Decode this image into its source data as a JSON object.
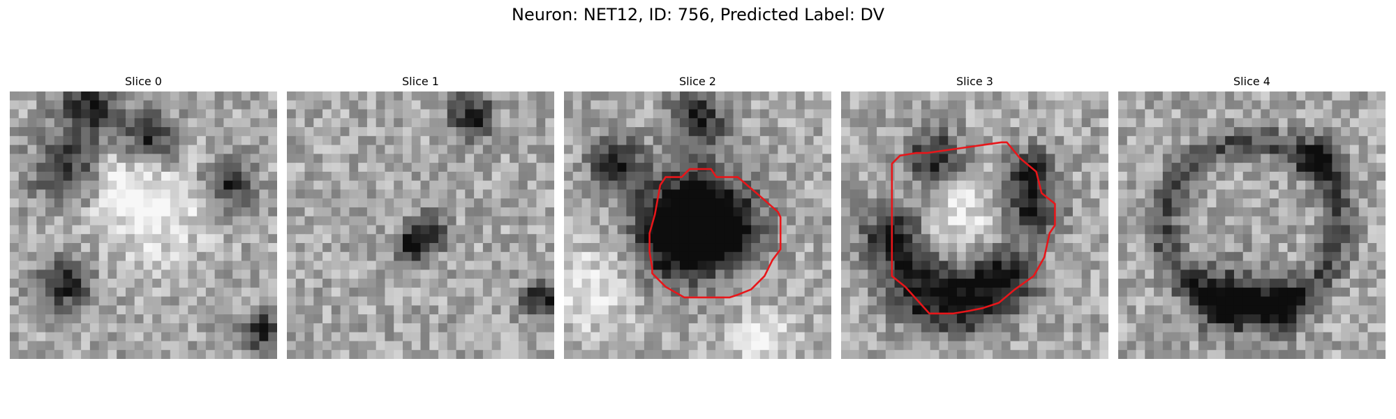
{
  "figure": {
    "title": "Neuron: NET12, ID: 756, Predicted Label: DV"
  },
  "slices": [
    {
      "label": "Slice 0",
      "has_contour": false,
      "noise_seed": 11,
      "dark_blobs": [
        [
          0.3,
          0.07,
          0.08
        ],
        [
          0.52,
          0.18,
          0.07
        ],
        [
          0.82,
          0.34,
          0.06
        ],
        [
          0.22,
          0.3,
          0.09
        ],
        [
          0.2,
          0.72,
          0.07
        ],
        [
          0.95,
          0.9,
          0.05
        ]
      ],
      "light_blobs": [
        [
          0.38,
          0.33,
          0.12
        ],
        [
          0.55,
          0.45,
          0.13
        ]
      ]
    },
    {
      "label": "Slice 1",
      "has_contour": false,
      "noise_seed": 23,
      "dark_blobs": [
        [
          0.69,
          0.09,
          0.06
        ],
        [
          0.53,
          0.53,
          0.05
        ],
        [
          0.46,
          0.58,
          0.04
        ],
        [
          0.95,
          0.78,
          0.05
        ]
      ],
      "light_blobs": []
    },
    {
      "label": "Slice 2",
      "has_contour": true,
      "noise_seed": 37,
      "dark_blobs": [
        [
          0.47,
          0.45,
          0.13
        ],
        [
          0.43,
          0.57,
          0.11
        ],
        [
          0.6,
          0.5,
          0.1
        ],
        [
          0.2,
          0.28,
          0.07
        ],
        [
          0.5,
          0.1,
          0.07
        ]
      ],
      "light_blobs": [
        [
          0.1,
          0.75,
          0.12
        ],
        [
          0.75,
          0.93,
          0.08
        ]
      ],
      "contour": [
        [
          0.47,
          0.96
        ],
        [
          0.47,
          0.97
        ],
        [
          0.48,
          0.98
        ],
        [
          0.53,
          0.98
        ],
        [
          0.54,
          0.97
        ],
        [
          0.55,
          0.96
        ],
        [
          0.63,
          0.98
        ],
        [
          0.65,
          1.0
        ],
        [
          0.72,
          1.05
        ],
        [
          0.8,
          1.1
        ],
        [
          0.8,
          1.25
        ],
        [
          0.78,
          1.3
        ],
        [
          0.74,
          1.37
        ],
        [
          0.7,
          1.42
        ],
        [
          0.64,
          1.44
        ],
        [
          0.6,
          1.47
        ],
        [
          0.43,
          1.47
        ],
        [
          0.38,
          1.44
        ],
        [
          0.32,
          1.4
        ],
        [
          0.3,
          1.37
        ],
        [
          0.3,
          1.35
        ],
        [
          0.32,
          1.3
        ],
        [
          0.3,
          1.27
        ],
        [
          0.32,
          1.2
        ],
        [
          0.32,
          1.1
        ],
        [
          0.34,
          1.06
        ],
        [
          0.36,
          1.02
        ],
        [
          0.4,
          1.01
        ]
      ]
    },
    {
      "label": "Slice 3",
      "has_contour": true,
      "noise_seed": 51,
      "dark_blobs": [
        [
          0.2,
          0.55,
          0.09
        ],
        [
          0.3,
          0.75,
          0.09
        ],
        [
          0.47,
          0.78,
          0.09
        ],
        [
          0.62,
          0.7,
          0.08
        ],
        [
          0.72,
          0.45,
          0.07
        ],
        [
          0.35,
          0.25,
          0.07
        ],
        [
          0.7,
          0.3,
          0.06
        ]
      ],
      "light_blobs": [
        [
          0.43,
          0.48,
          0.11
        ]
      ]
    },
    {
      "label": "Slice 4",
      "has_contour": false,
      "noise_seed": 67,
      "ring": true,
      "dark_blobs": [
        [
          0.4,
          0.78,
          0.09
        ],
        [
          0.6,
          0.8,
          0.07
        ],
        [
          0.76,
          0.25,
          0.05
        ]
      ],
      "light_blobs": []
    }
  ]
}
